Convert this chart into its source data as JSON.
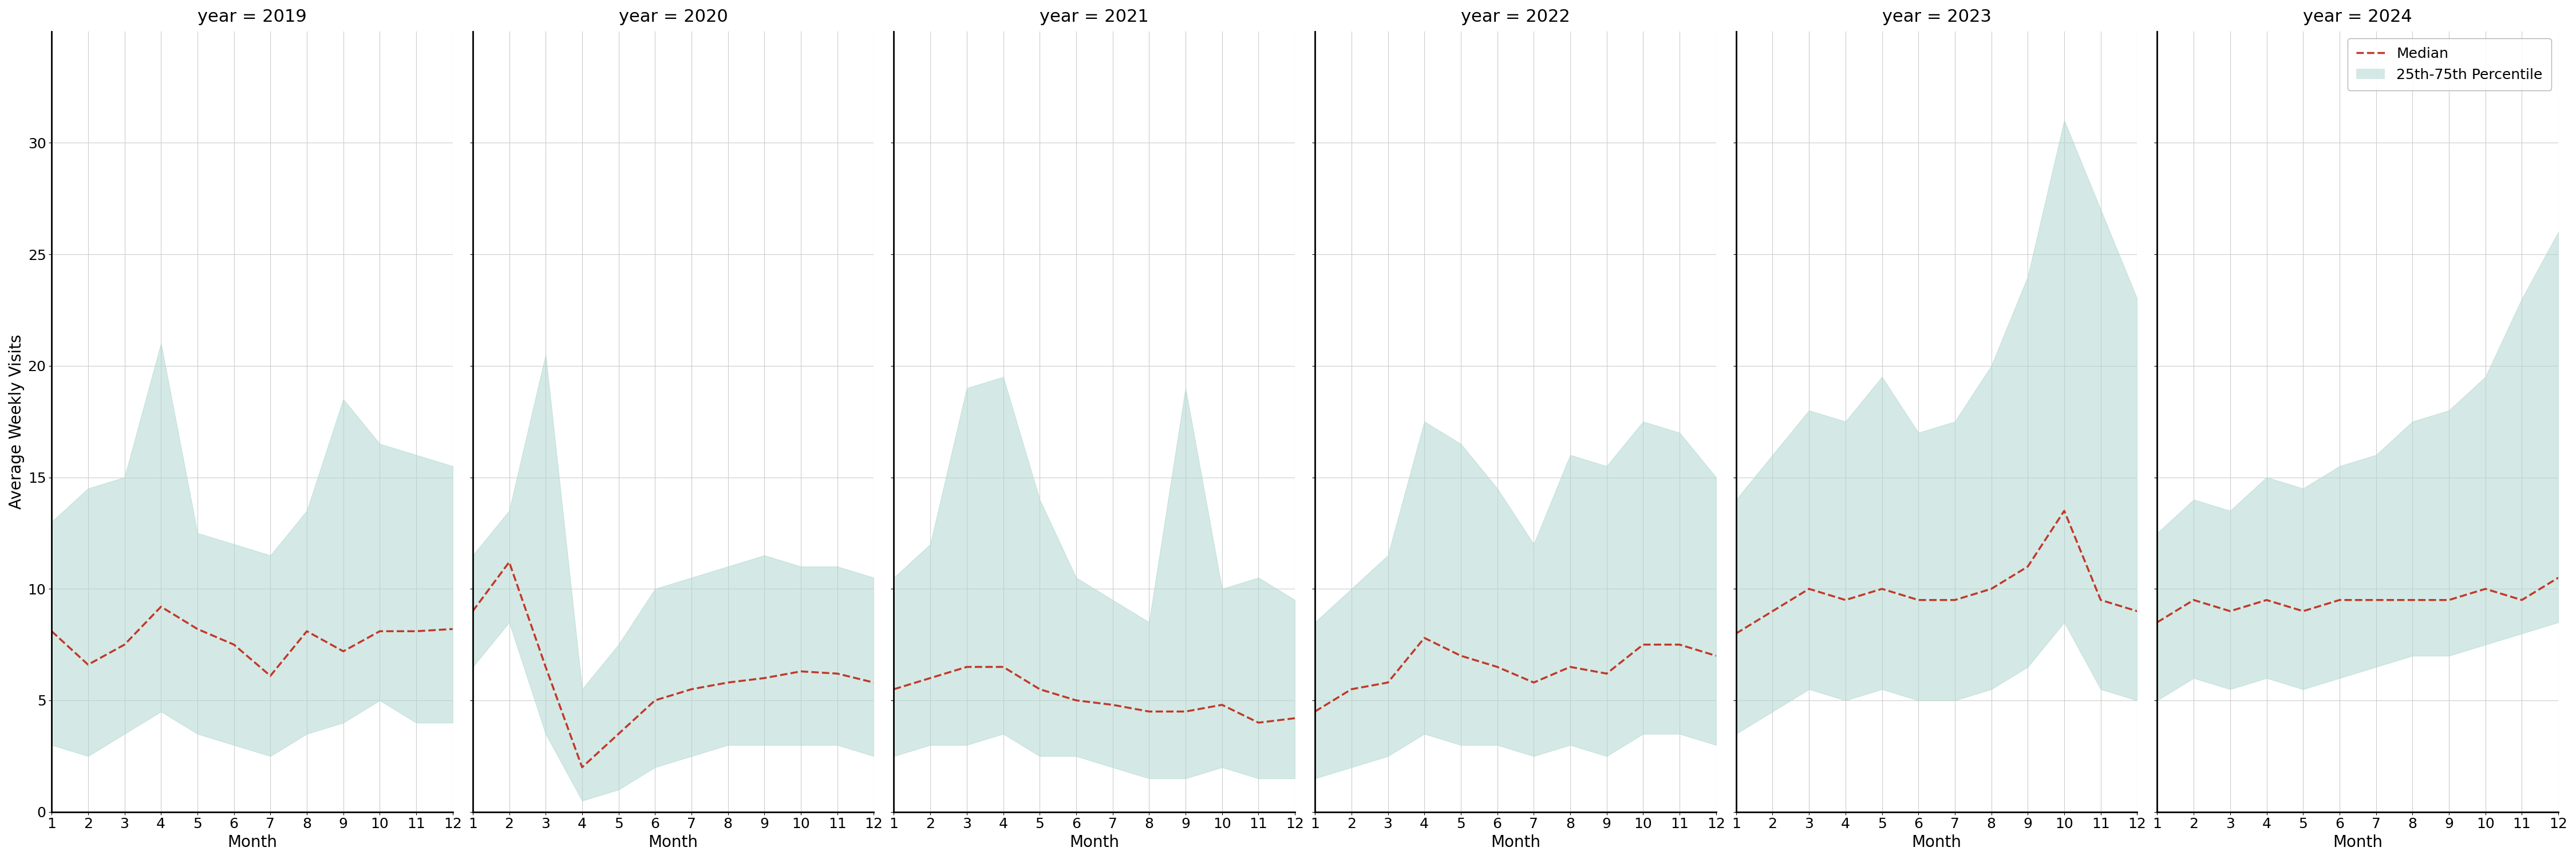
{
  "years": [
    2019,
    2020,
    2021,
    2022,
    2023,
    2024
  ],
  "months": [
    1,
    2,
    3,
    4,
    5,
    6,
    7,
    8,
    9,
    10,
    11,
    12
  ],
  "median": {
    "2019": [
      8.1,
      6.6,
      7.5,
      9.2,
      8.2,
      7.5,
      6.1,
      8.1,
      7.2,
      8.1,
      8.1,
      8.2
    ],
    "2020": [
      9.0,
      11.2,
      6.5,
      2.0,
      3.5,
      5.0,
      5.5,
      5.8,
      6.0,
      6.3,
      6.2,
      5.8
    ],
    "2021": [
      5.5,
      6.0,
      6.5,
      6.5,
      5.5,
      5.0,
      4.8,
      4.5,
      4.5,
      4.8,
      4.0,
      4.2
    ],
    "2022": [
      4.5,
      5.5,
      5.8,
      7.8,
      7.0,
      6.5,
      5.8,
      6.5,
      6.2,
      7.5,
      7.5,
      7.0
    ],
    "2023": [
      8.0,
      9.0,
      10.0,
      9.5,
      10.0,
      9.5,
      9.5,
      10.0,
      11.0,
      13.5,
      9.5,
      9.0
    ],
    "2024": [
      8.5,
      9.5,
      9.0,
      9.5,
      9.0,
      9.5,
      9.5,
      9.5,
      9.5,
      10.0,
      9.5,
      10.5
    ]
  },
  "q25": {
    "2019": [
      3.0,
      2.5,
      3.5,
      4.5,
      3.5,
      3.0,
      2.5,
      3.5,
      4.0,
      5.0,
      4.0,
      4.0
    ],
    "2020": [
      6.5,
      8.5,
      3.5,
      0.5,
      1.0,
      2.0,
      2.5,
      3.0,
      3.0,
      3.0,
      3.0,
      2.5
    ],
    "2021": [
      2.5,
      3.0,
      3.0,
      3.5,
      2.5,
      2.5,
      2.0,
      1.5,
      1.5,
      2.0,
      1.5,
      1.5
    ],
    "2022": [
      1.5,
      2.0,
      2.5,
      3.5,
      3.0,
      3.0,
      2.5,
      3.0,
      2.5,
      3.5,
      3.5,
      3.0
    ],
    "2023": [
      3.5,
      4.5,
      5.5,
      5.0,
      5.5,
      5.0,
      5.0,
      5.5,
      6.5,
      8.5,
      5.5,
      5.0
    ],
    "2024": [
      5.0,
      6.0,
      5.5,
      6.0,
      5.5,
      6.0,
      6.5,
      7.0,
      7.0,
      7.5,
      8.0,
      8.5
    ]
  },
  "q75": {
    "2019": [
      13.0,
      14.5,
      15.0,
      21.0,
      12.5,
      12.0,
      11.5,
      13.5,
      18.5,
      16.5,
      16.0,
      15.5
    ],
    "2020": [
      11.5,
      13.5,
      20.5,
      5.5,
      7.5,
      10.0,
      10.5,
      11.0,
      11.5,
      11.0,
      11.0,
      10.5
    ],
    "2021": [
      10.5,
      12.0,
      19.0,
      19.5,
      14.0,
      10.5,
      9.5,
      8.5,
      19.0,
      10.0,
      10.5,
      9.5
    ],
    "2022": [
      8.5,
      10.0,
      11.5,
      17.5,
      16.5,
      14.5,
      12.0,
      16.0,
      15.5,
      17.5,
      17.0,
      15.0
    ],
    "2023": [
      14.0,
      16.0,
      18.0,
      17.5,
      19.5,
      17.0,
      17.5,
      20.0,
      24.0,
      31.0,
      27.0,
      23.0
    ],
    "2024": [
      12.5,
      14.0,
      13.5,
      15.0,
      14.5,
      15.5,
      16.0,
      17.5,
      18.0,
      19.5,
      23.0,
      26.0
    ]
  },
  "fill_color": "#b2d8d0",
  "fill_alpha": 0.55,
  "line_color": "#c0392b",
  "ylabel": "Average Weekly Visits",
  "xlabel": "Month",
  "ylim": [
    0,
    35
  ],
  "yticks": [
    0,
    5,
    10,
    15,
    20,
    25,
    30
  ],
  "xticks": [
    1,
    2,
    3,
    4,
    5,
    6,
    7,
    8,
    9,
    10,
    11,
    12
  ],
  "legend_median": "Median",
  "legend_band": "25th-75th Percentile",
  "grid_color": "#cccccc",
  "background_color": "#ffffff",
  "title_fontsize": 22,
  "label_fontsize": 20,
  "tick_fontsize": 18,
  "legend_fontsize": 18
}
